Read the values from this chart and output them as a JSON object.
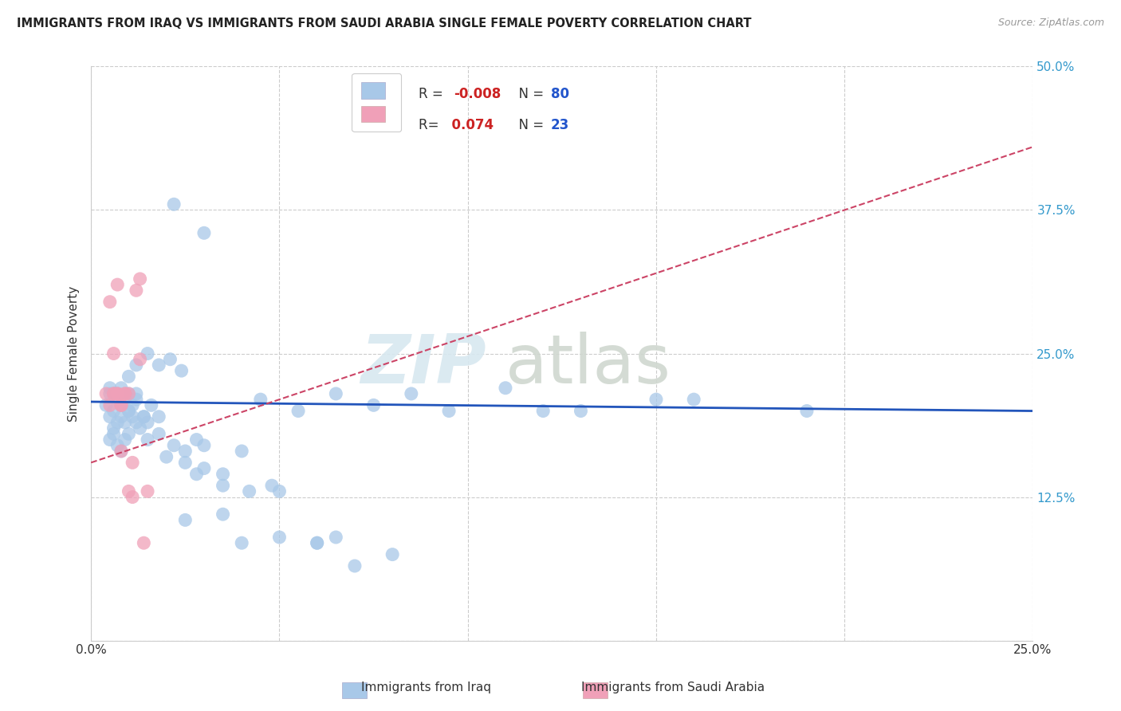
{
  "title": "IMMIGRANTS FROM IRAQ VS IMMIGRANTS FROM SAUDI ARABIA SINGLE FEMALE POVERTY CORRELATION CHART",
  "source": "Source: ZipAtlas.com",
  "ylabel": "Single Female Poverty",
  "legend_label1": "Immigrants from Iraq",
  "legend_label2": "Immigrants from Saudi Arabia",
  "R1": "-0.008",
  "N1": "80",
  "R2": "0.074",
  "N2": "23",
  "color1": "#a8c8e8",
  "color2": "#f0a0b8",
  "trend_color1": "#2255bb",
  "trend_color2": "#cc4466",
  "xlim": [
    0.0,
    0.25
  ],
  "ylim": [
    0.0,
    0.5
  ],
  "xticks": [
    0.0,
    0.05,
    0.1,
    0.15,
    0.2,
    0.25
  ],
  "yticks": [
    0.0,
    0.125,
    0.25,
    0.375,
    0.5
  ],
  "background_color": "#ffffff",
  "grid_color": "#cccccc",
  "watermark_zip": "ZIP",
  "watermark_atlas": "atlas",
  "iraq_x": [
    0.004,
    0.005,
    0.006,
    0.007,
    0.005,
    0.006,
    0.007,
    0.008,
    0.005,
    0.006,
    0.007,
    0.008,
    0.009,
    0.01,
    0.005,
    0.006,
    0.007,
    0.008,
    0.009,
    0.01,
    0.011,
    0.012,
    0.008,
    0.009,
    0.01,
    0.011,
    0.012,
    0.013,
    0.014,
    0.015,
    0.01,
    0.012,
    0.014,
    0.016,
    0.018,
    0.01,
    0.012,
    0.015,
    0.018,
    0.021,
    0.024,
    0.015,
    0.018,
    0.022,
    0.025,
    0.028,
    0.03,
    0.02,
    0.025,
    0.03,
    0.035,
    0.04,
    0.028,
    0.035,
    0.042,
    0.05,
    0.06,
    0.04,
    0.05,
    0.06,
    0.07,
    0.08,
    0.055,
    0.065,
    0.075,
    0.085,
    0.095,
    0.11,
    0.13,
    0.15,
    0.19,
    0.045,
    0.12,
    0.16,
    0.065,
    0.025,
    0.035,
    0.048,
    0.022,
    0.03
  ],
  "iraq_y": [
    0.205,
    0.215,
    0.2,
    0.215,
    0.195,
    0.185,
    0.19,
    0.205,
    0.175,
    0.18,
    0.17,
    0.165,
    0.175,
    0.18,
    0.22,
    0.215,
    0.21,
    0.22,
    0.21,
    0.215,
    0.205,
    0.215,
    0.195,
    0.19,
    0.2,
    0.195,
    0.19,
    0.185,
    0.195,
    0.19,
    0.2,
    0.21,
    0.195,
    0.205,
    0.195,
    0.23,
    0.24,
    0.25,
    0.24,
    0.245,
    0.235,
    0.175,
    0.18,
    0.17,
    0.165,
    0.175,
    0.17,
    0.16,
    0.155,
    0.15,
    0.145,
    0.165,
    0.145,
    0.135,
    0.13,
    0.13,
    0.085,
    0.085,
    0.09,
    0.085,
    0.065,
    0.075,
    0.2,
    0.215,
    0.205,
    0.215,
    0.2,
    0.22,
    0.2,
    0.21,
    0.2,
    0.21,
    0.2,
    0.21,
    0.09,
    0.105,
    0.11,
    0.135,
    0.38,
    0.355
  ],
  "saudi_x": [
    0.004,
    0.006,
    0.005,
    0.007,
    0.006,
    0.005,
    0.007,
    0.008,
    0.006,
    0.008,
    0.01,
    0.007,
    0.009,
    0.008,
    0.01,
    0.011,
    0.009,
    0.011,
    0.012,
    0.013,
    0.014,
    0.015,
    0.013
  ],
  "saudi_y": [
    0.215,
    0.25,
    0.295,
    0.31,
    0.215,
    0.205,
    0.215,
    0.205,
    0.215,
    0.205,
    0.215,
    0.215,
    0.215,
    0.165,
    0.13,
    0.125,
    0.215,
    0.155,
    0.305,
    0.315,
    0.085,
    0.13,
    0.245
  ],
  "iraq_trend_x": [
    0.0,
    0.25
  ],
  "iraq_trend_y": [
    0.208,
    0.2
  ],
  "saudi_trend_x": [
    0.0,
    0.25
  ],
  "saudi_trend_y": [
    0.155,
    0.43
  ]
}
